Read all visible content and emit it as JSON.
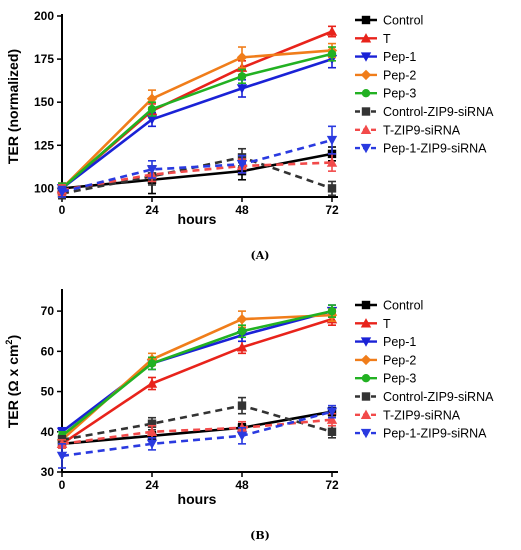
{
  "chart_data": [
    {
      "type": "line",
      "panel_label": "(A)",
      "xlabel": "hours",
      "ylabel": "TER (normalized)",
      "x": [
        0,
        24,
        48,
        72
      ],
      "xlim": [
        0,
        72
      ],
      "ylim": [
        95,
        200
      ],
      "yticks": [
        100,
        125,
        150,
        175,
        200
      ],
      "xticks": [
        0,
        24,
        48,
        72
      ],
      "legend_position": "right",
      "series": [
        {
          "name": "Control",
          "color": "#000000",
          "marker": "square",
          "dashed": false,
          "values": [
            100,
            105,
            110,
            120
          ],
          "err": [
            3,
            8,
            5,
            4
          ]
        },
        {
          "name": "T",
          "color": "#e8231b",
          "marker": "triangle-up",
          "dashed": false,
          "values": [
            100,
            145,
            170,
            191
          ],
          "err": [
            3,
            4,
            4,
            3
          ]
        },
        {
          "name": "Pep-1",
          "color": "#1a22d6",
          "marker": "triangle-down",
          "dashed": false,
          "values": [
            100,
            140,
            158,
            175
          ],
          "err": [
            3,
            4,
            5,
            5
          ]
        },
        {
          "name": "Pep-2",
          "color": "#f07d1a",
          "marker": "diamond",
          "dashed": false,
          "values": [
            100,
            152,
            176,
            180
          ],
          "err": [
            3,
            5,
            6,
            4
          ]
        },
        {
          "name": "Pep-3",
          "color": "#22b122",
          "marker": "circle",
          "dashed": false,
          "values": [
            100,
            146,
            165,
            178
          ],
          "err": [
            3,
            4,
            4,
            4
          ]
        },
        {
          "name": "Control-ZIP9-siRNA",
          "color": "#333333",
          "marker": "square",
          "dashed": true,
          "values": [
            97,
            107,
            118,
            100
          ],
          "err": [
            3,
            5,
            5,
            4
          ]
        },
        {
          "name": "T-ZIP9-siRNA",
          "color": "#f24a4a",
          "marker": "triangle-up",
          "dashed": true,
          "values": [
            99,
            108,
            113,
            115
          ],
          "err": [
            3,
            4,
            4,
            5
          ]
        },
        {
          "name": "Pep-1-ZIP9-siRNA",
          "color": "#2a3ae0",
          "marker": "triangle-down",
          "dashed": true,
          "values": [
            98,
            111,
            114,
            128
          ],
          "err": [
            3,
            5,
            5,
            8
          ]
        }
      ]
    },
    {
      "type": "line",
      "panel_label": "(B)",
      "xlabel": "hours",
      "ylabel": "TER (Ω x cm",
      "ylabel_sup": "2",
      "ylabel_close": ")",
      "x": [
        0,
        24,
        48,
        72
      ],
      "xlim": [
        0,
        72
      ],
      "ylim": [
        30,
        75
      ],
      "yticks": [
        30,
        40,
        50,
        60,
        70
      ],
      "xticks": [
        0,
        24,
        48,
        72
      ],
      "legend_position": "right",
      "series": [
        {
          "name": "Control",
          "color": "#000000",
          "marker": "square",
          "dashed": false,
          "values": [
            37,
            39,
            41,
            45
          ],
          "err": [
            1,
            1,
            1,
            1
          ]
        },
        {
          "name": "T",
          "color": "#e8231b",
          "marker": "triangle-up",
          "dashed": false,
          "values": [
            37,
            52,
            61,
            68
          ],
          "err": [
            1,
            1.5,
            1.5,
            1.5
          ]
        },
        {
          "name": "Pep-1",
          "color": "#1a22d6",
          "marker": "triangle-down",
          "dashed": false,
          "values": [
            40,
            57,
            64,
            70
          ],
          "err": [
            1,
            1.5,
            1.5,
            1.5
          ]
        },
        {
          "name": "Pep-2",
          "color": "#f07d1a",
          "marker": "diamond",
          "dashed": false,
          "values": [
            38,
            58,
            68,
            69
          ],
          "err": [
            1,
            1.5,
            2,
            1.5
          ]
        },
        {
          "name": "Pep-3",
          "color": "#22b122",
          "marker": "circle",
          "dashed": false,
          "values": [
            39,
            57,
            65,
            70
          ],
          "err": [
            1,
            1.5,
            1.5,
            1.5
          ]
        },
        {
          "name": "Control-ZIP9-siRNA",
          "color": "#333333",
          "marker": "square",
          "dashed": true,
          "values": [
            38,
            42,
            46.5,
            40
          ],
          "err": [
            1,
            1.5,
            2,
            1.5
          ]
        },
        {
          "name": "T-ZIP9-siRNA",
          "color": "#f24a4a",
          "marker": "triangle-up",
          "dashed": true,
          "values": [
            37,
            40,
            41,
            43
          ],
          "err": [
            1,
            1.5,
            1.5,
            1.5
          ]
        },
        {
          "name": "Pep-1-ZIP9-siRNA",
          "color": "#2a3ae0",
          "marker": "triangle-down",
          "dashed": true,
          "values": [
            34,
            37,
            39,
            45
          ],
          "err": [
            3,
            1.5,
            2,
            1.5
          ]
        }
      ]
    }
  ]
}
